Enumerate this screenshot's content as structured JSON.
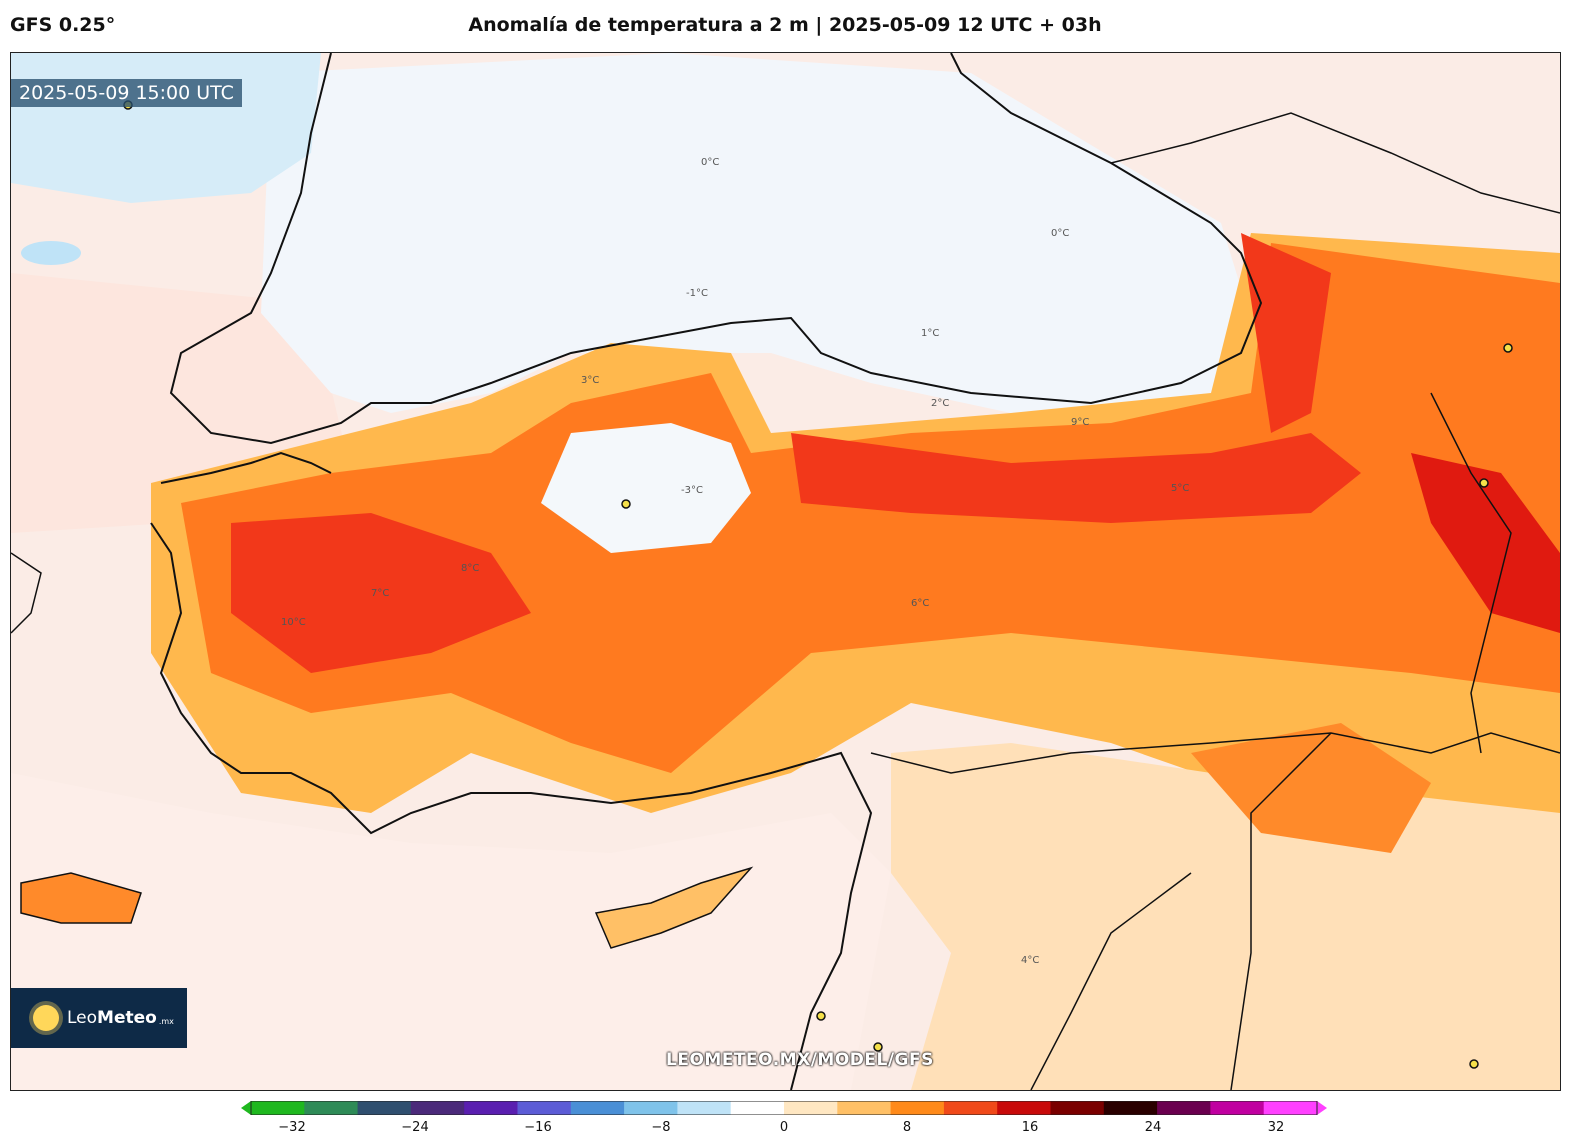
{
  "header": {
    "model": "GFS 0.25°",
    "title": "Anomalía de temperatura a 2 m | 2025-05-09 12 UTC + 03h"
  },
  "map": {
    "timestamp": "2025-05-09 15:00 UTC",
    "watermark": "LEOMETEO.MX/MODEL/GFS",
    "logo": {
      "name_light": "Leo",
      "name_bold": "Meteo",
      "suffix": ".mx"
    },
    "contour_labels": [
      "0°C",
      "0°C",
      "-1°C",
      "1°C",
      "2°C",
      "3°C",
      "5°C",
      "6°C",
      "7°C",
      "8°C",
      "9°C",
      "10°C",
      "-3°C",
      "4°C"
    ]
  },
  "colorbar": {
    "tick_labels": [
      "−32",
      "−24",
      "−16",
      "−8",
      "0",
      "8",
      "16",
      "24",
      "32"
    ],
    "colors": [
      "#1fb81f",
      "#2e8b57",
      "#2f4f6f",
      "#4b2a7a",
      "#5a1fb0",
      "#5c5cd6",
      "#4a8fd6",
      "#7fc3ea",
      "#bfe3f7",
      "#ffffff",
      "#ffe7c2",
      "#ffc066",
      "#ff8a1a",
      "#f04a1a",
      "#c80a0a",
      "#7a0000",
      "#2a0000",
      "#6a004f",
      "#c000a0",
      "#ff40ff"
    ]
  }
}
